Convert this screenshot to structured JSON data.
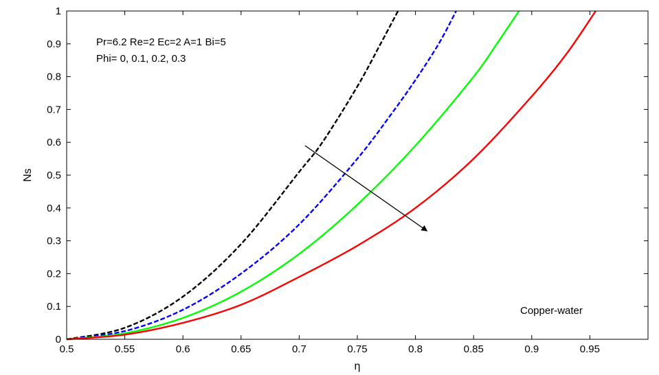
{
  "chart_data": {
    "type": "line",
    "xlabel": "η",
    "ylabel": "Ns",
    "xlim": [
      0.5,
      1.0
    ],
    "ylim": [
      0,
      1
    ],
    "xticks": [
      "0.5",
      "0.55",
      "0.6",
      "0.65",
      "0.7",
      "0.75",
      "0.8",
      "0.85",
      "0.9",
      "0.95"
    ],
    "yticks": [
      "0",
      "0.1",
      "0.2",
      "0.3",
      "0.4",
      "0.5",
      "0.6",
      "0.7",
      "0.8",
      "0.9",
      "1"
    ],
    "grid": false,
    "annotations": {
      "params_line1": "Pr=6.2 Re=2 Ec=2 A=1 Bi=5",
      "params_line2": "Phi= 0, 0.1, 0.2, 0.3",
      "fluid_label": "Copper-water"
    },
    "arrow": {
      "from": [
        0.705,
        0.59
      ],
      "to": [
        0.81,
        0.33
      ]
    },
    "series": [
      {
        "color": "#000000",
        "dash": true,
        "x": [
          0.5,
          0.55,
          0.6,
          0.65,
          0.7,
          0.72,
          0.75,
          0.77,
          0.785
        ],
        "y": [
          0.0,
          0.035,
          0.13,
          0.29,
          0.51,
          0.6,
          0.77,
          0.9,
          1.0
        ]
      },
      {
        "color": "#0000ff",
        "dash": true,
        "x": [
          0.5,
          0.55,
          0.6,
          0.65,
          0.7,
          0.75,
          0.78,
          0.8,
          0.82,
          0.835
        ],
        "y": [
          0.0,
          0.025,
          0.09,
          0.2,
          0.35,
          0.55,
          0.69,
          0.79,
          0.9,
          1.0
        ]
      },
      {
        "color": "#00ff00",
        "dash": false,
        "x": [
          0.5,
          0.55,
          0.6,
          0.65,
          0.7,
          0.75,
          0.8,
          0.85,
          0.87,
          0.889
        ],
        "y": [
          0.0,
          0.018,
          0.065,
          0.145,
          0.26,
          0.41,
          0.59,
          0.8,
          0.9,
          1.0
        ]
      },
      {
        "color": "#ff0000",
        "dash": false,
        "x": [
          0.5,
          0.55,
          0.6,
          0.65,
          0.7,
          0.75,
          0.8,
          0.85,
          0.9,
          0.93,
          0.955
        ],
        "y": [
          0.0,
          0.014,
          0.05,
          0.105,
          0.19,
          0.285,
          0.4,
          0.55,
          0.74,
          0.87,
          1.0
        ]
      }
    ]
  }
}
